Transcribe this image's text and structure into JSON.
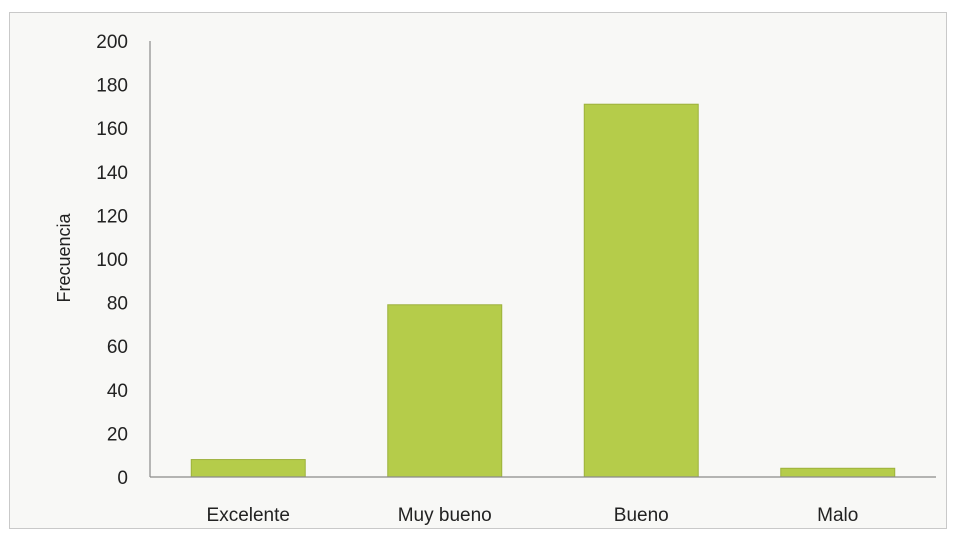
{
  "chart_data": {
    "type": "bar",
    "categories": [
      "Excelente",
      "Muy bueno",
      "Bueno",
      "Malo"
    ],
    "values": [
      8,
      79,
      171,
      4
    ],
    "title": "",
    "xlabel": "",
    "ylabel": "Frecuencia",
    "ylim": [
      0,
      200
    ],
    "yticks": [
      0,
      20,
      40,
      60,
      80,
      100,
      120,
      140,
      160,
      180,
      200
    ],
    "grid": false,
    "legend": "none",
    "bar_color": "#b5cc4a",
    "bar_edge_color": "#9db13c"
  }
}
